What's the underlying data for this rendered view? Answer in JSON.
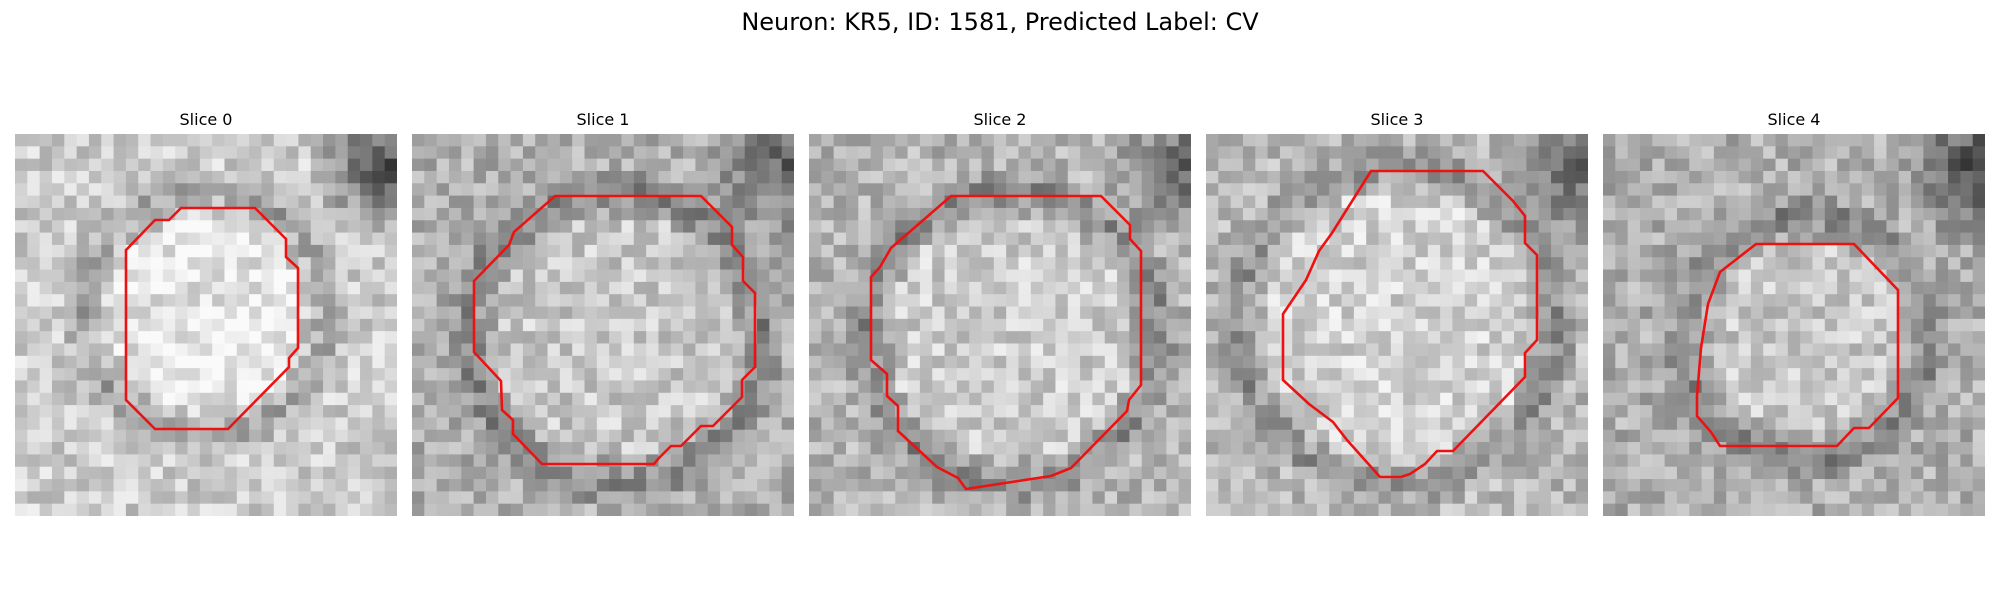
{
  "figure": {
    "title": "Neuron: KR5, ID: 1581, Predicted Label: CV"
  },
  "colors": {
    "outline": "#ee1111",
    "background": "#ffffff"
  },
  "panels": [
    {
      "title": "Slice 0",
      "image": "grayscale-microscopy-patch",
      "overlay": "red-neuron-outline"
    },
    {
      "title": "Slice 1",
      "image": "grayscale-microscopy-patch",
      "overlay": "red-neuron-outline"
    },
    {
      "title": "Slice 2",
      "image": "grayscale-microscopy-patch",
      "overlay": "red-neuron-outline"
    },
    {
      "title": "Slice 3",
      "image": "grayscale-microscopy-patch",
      "overlay": "red-neuron-outline"
    },
    {
      "title": "Slice 4",
      "image": "grayscale-microscopy-patch",
      "overlay": "red-neuron-outline"
    }
  ]
}
